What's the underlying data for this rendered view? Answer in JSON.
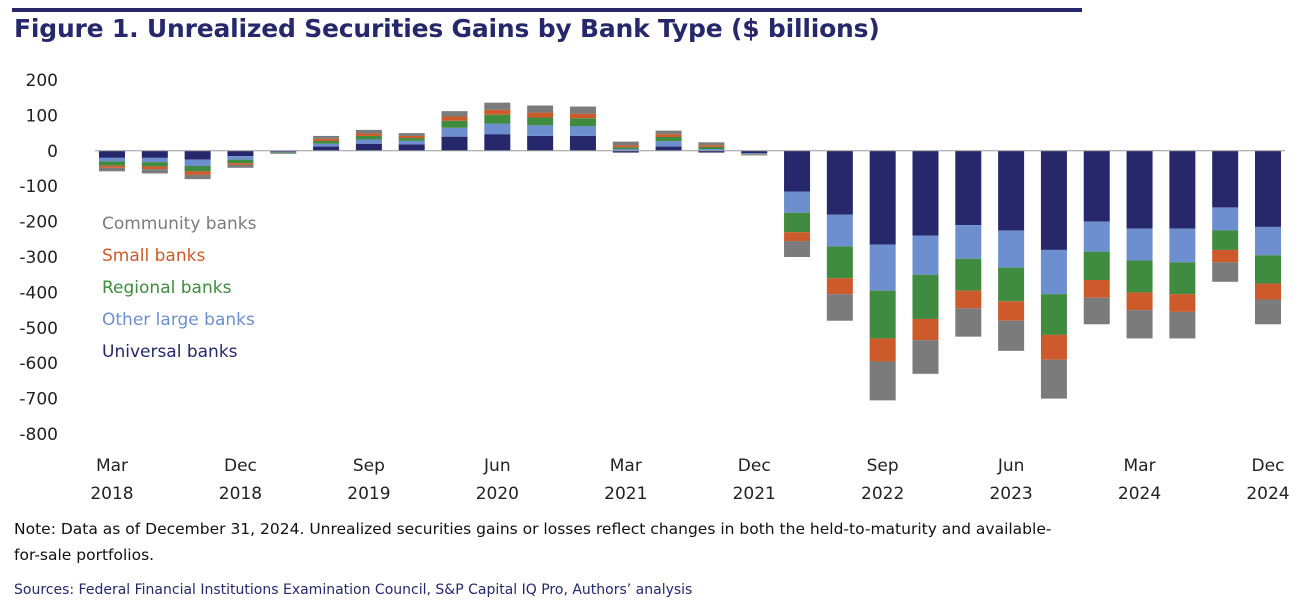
{
  "title": "Figure 1. Unrealized Securities Gains by Bank Type ($ billions)",
  "note": "Note: Data as of December 31, 2024. Unrealized securities gains or losses reflect changes in both the held-to-maturity and available-for-sale portfolios.",
  "sources": "Sources: Federal Financial Institutions Examination Council, S&P Capital IQ Pro, Authors’ analysis",
  "chart_data": {
    "type": "bar",
    "stacked": true,
    "title": "Figure 1. Unrealized Securities Gains by Bank Type ($ billions)",
    "xlabel": "",
    "ylabel": "",
    "ylim": [
      -800,
      200
    ],
    "yticks": [
      200,
      100,
      0,
      -100,
      -200,
      -300,
      -400,
      -500,
      -600,
      -700,
      -800
    ],
    "grid": false,
    "legend_position": "left",
    "categories": [
      "2018 Q1",
      "2018 Q2",
      "2018 Q3",
      "2018 Q4",
      "2019 Q1",
      "2019 Q2",
      "2019 Q3",
      "2019 Q4",
      "2020 Q1",
      "2020 Q2",
      "2020 Q3",
      "2020 Q4",
      "2021 Q1",
      "2021 Q2",
      "2021 Q3",
      "2021 Q4",
      "2022 Q1",
      "2022 Q2",
      "2022 Q3",
      "2022 Q4",
      "2023 Q1",
      "2023 Q2",
      "2023 Q3",
      "2023 Q4",
      "2024 Q1",
      "2024 Q2",
      "2024 Q3",
      "2024 Q4"
    ],
    "tick_labels": [
      {
        "index": 0,
        "line1": "Mar",
        "line2": "2018"
      },
      {
        "index": 3,
        "line1": "Dec",
        "line2": "2018"
      },
      {
        "index": 6,
        "line1": "Sep",
        "line2": "2019"
      },
      {
        "index": 9,
        "line1": "Jun",
        "line2": "2020"
      },
      {
        "index": 12,
        "line1": "Mar",
        "line2": "2021"
      },
      {
        "index": 15,
        "line1": "Dec",
        "line2": "2021"
      },
      {
        "index": 18,
        "line1": "Sep",
        "line2": "2022"
      },
      {
        "index": 21,
        "line1": "Jun",
        "line2": "2023"
      },
      {
        "index": 24,
        "line1": "Mar",
        "line2": "2024"
      },
      {
        "index": 27,
        "line1": "Dec",
        "line2": "2024"
      }
    ],
    "series": [
      {
        "name": "Universal banks",
        "color": "#26286b",
        "values": [
          -20,
          -20,
          -25,
          -15,
          -3,
          12,
          20,
          18,
          40,
          47,
          42,
          42,
          -5,
          12,
          -5,
          -7,
          -115,
          -180,
          -265,
          -240,
          -210,
          -225,
          -280,
          -200,
          -220,
          -220,
          -160,
          -215
        ]
      },
      {
        "name": "Other large banks",
        "color": "#6d8fcf",
        "values": [
          -10,
          -12,
          -18,
          -10,
          -2,
          8,
          12,
          10,
          25,
          30,
          30,
          28,
          5,
          15,
          5,
          -2,
          -60,
          -90,
          -130,
          -110,
          -95,
          -105,
          -125,
          -85,
          -90,
          -95,
          -65,
          -80
        ]
      },
      {
        "name": "Regional banks",
        "color": "#3f8b3f",
        "values": [
          -12,
          -12,
          -15,
          -10,
          -2,
          8,
          10,
          8,
          20,
          25,
          22,
          22,
          5,
          12,
          6,
          -1,
          -55,
          -90,
          -135,
          -125,
          -90,
          -95,
          -115,
          -80,
          -90,
          -90,
          -55,
          -80
        ]
      },
      {
        "name": "Small banks",
        "color": "#cc5a2b",
        "values": [
          -6,
          -8,
          -10,
          -5,
          -1,
          6,
          7,
          6,
          12,
          14,
          14,
          13,
          6,
          8,
          5,
          -1,
          -25,
          -45,
          -65,
          -60,
          -50,
          -55,
          -70,
          -50,
          -50,
          -50,
          -35,
          -45
        ]
      },
      {
        "name": "Community banks",
        "color": "#7b7b7b",
        "values": [
          -10,
          -12,
          -12,
          -8,
          -1,
          8,
          10,
          8,
          15,
          20,
          20,
          20,
          10,
          10,
          8,
          -2,
          -45,
          -75,
          -110,
          -95,
          -80,
          -85,
          -110,
          -75,
          -80,
          -75,
          -55,
          -70
        ]
      }
    ],
    "legend": [
      {
        "label": "Community banks",
        "color": "#7b7b7b"
      },
      {
        "label": "Small banks",
        "color": "#cc5a2b"
      },
      {
        "label": "Regional banks",
        "color": "#3f8b3f"
      },
      {
        "label": "Other large banks",
        "color": "#6d8fcf"
      },
      {
        "label": "Universal banks",
        "color": "#26286b"
      }
    ]
  }
}
